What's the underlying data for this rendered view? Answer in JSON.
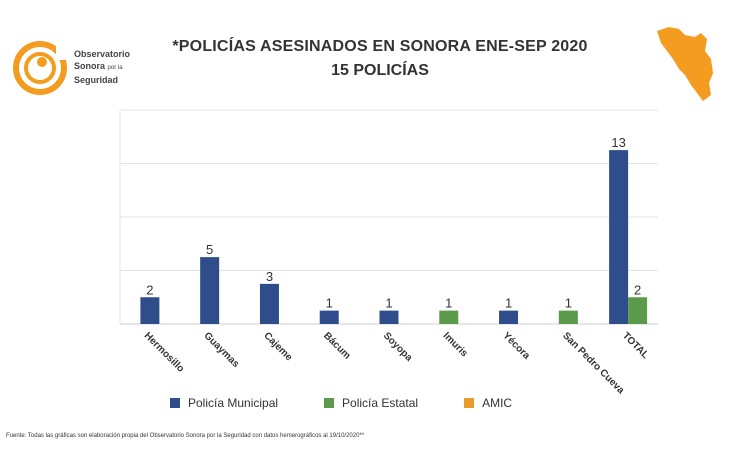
{
  "logo": {
    "line1": "Observatorio",
    "line2": "Sonora",
    "line2_small": "por la",
    "line3": "Seguridad"
  },
  "header": {
    "title": "*POLICÍAS ASESINADOS EN SONORA ENE-SEP 2020",
    "subtitle": "15 POLICÍAS"
  },
  "footer": "Fuente: Todas las gráficas son elaboración propia del Observatorio Sonora por la Seguridad con datos hemerográficos al 19/10/2020**",
  "colors": {
    "municipal": "#2e4d8a",
    "estatal": "#5a9a4a",
    "amic": "#e89a2c",
    "brand_orange": "#f39c1f"
  },
  "chart_data": {
    "type": "bar",
    "title": "*POLICÍAS ASESINADOS EN SONORA ENE-SEP 2020",
    "subtitle": "15 POLICÍAS",
    "categories": [
      "Hermosillo",
      "Guaymas",
      "Cajeme",
      "Bácum",
      "Soyopa",
      "Imuris",
      "Yécora",
      "San Pedro Cueva",
      "TOTAL"
    ],
    "series": [
      {
        "name": "Policía Municipal",
        "color": "#2e4d8a",
        "values": [
          2,
          5,
          3,
          1,
          1,
          null,
          1,
          null,
          13
        ]
      },
      {
        "name": "Policía Estatal",
        "color": "#5a9a4a",
        "values": [
          null,
          null,
          null,
          null,
          null,
          1,
          null,
          1,
          2
        ]
      },
      {
        "name": "AMIC",
        "color": "#e89a2c",
        "values": [
          null,
          null,
          null,
          null,
          null,
          null,
          null,
          null,
          null
        ]
      }
    ],
    "ylim": [
      0,
      14
    ],
    "grid": true,
    "legend_position": "bottom",
    "data_labels": true
  }
}
